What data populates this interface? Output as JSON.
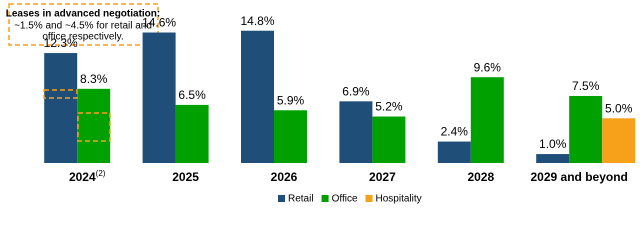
{
  "chart_data": {
    "type": "bar",
    "categories": [
      "2024",
      "2025",
      "2026",
      "2027",
      "2028",
      "2029 and beyond"
    ],
    "category_footnote": {
      "index": 0,
      "text": "(2)"
    },
    "series": [
      {
        "name": "Retail",
        "color": "#1f4e79",
        "values": [
          12.3,
          14.6,
          14.8,
          6.9,
          2.4,
          1.0
        ],
        "value_labels": [
          "12.3%",
          "14.6%",
          "14.8%",
          "6.9%",
          "2.4%",
          "1.0%"
        ]
      },
      {
        "name": "Office",
        "color": "#00a000",
        "values": [
          8.3,
          6.5,
          5.9,
          5.2,
          9.6,
          7.5
        ],
        "value_labels": [
          "8.3%",
          "6.5%",
          "5.9%",
          "5.2%",
          "9.6%",
          "7.5%"
        ]
      },
      {
        "name": "Hospitality",
        "color": "#f7a11a",
        "values": [
          null,
          null,
          null,
          null,
          null,
          5.0
        ],
        "value_labels": [
          null,
          null,
          null,
          null,
          null,
          "5.0%"
        ]
      }
    ],
    "ylim": [
      0,
      16
    ],
    "annotation": {
      "title": "Leases in advanced negotiation:",
      "lines": [
        "~1.5% and ~4.5% for retail and",
        "office respectively."
      ]
    }
  }
}
